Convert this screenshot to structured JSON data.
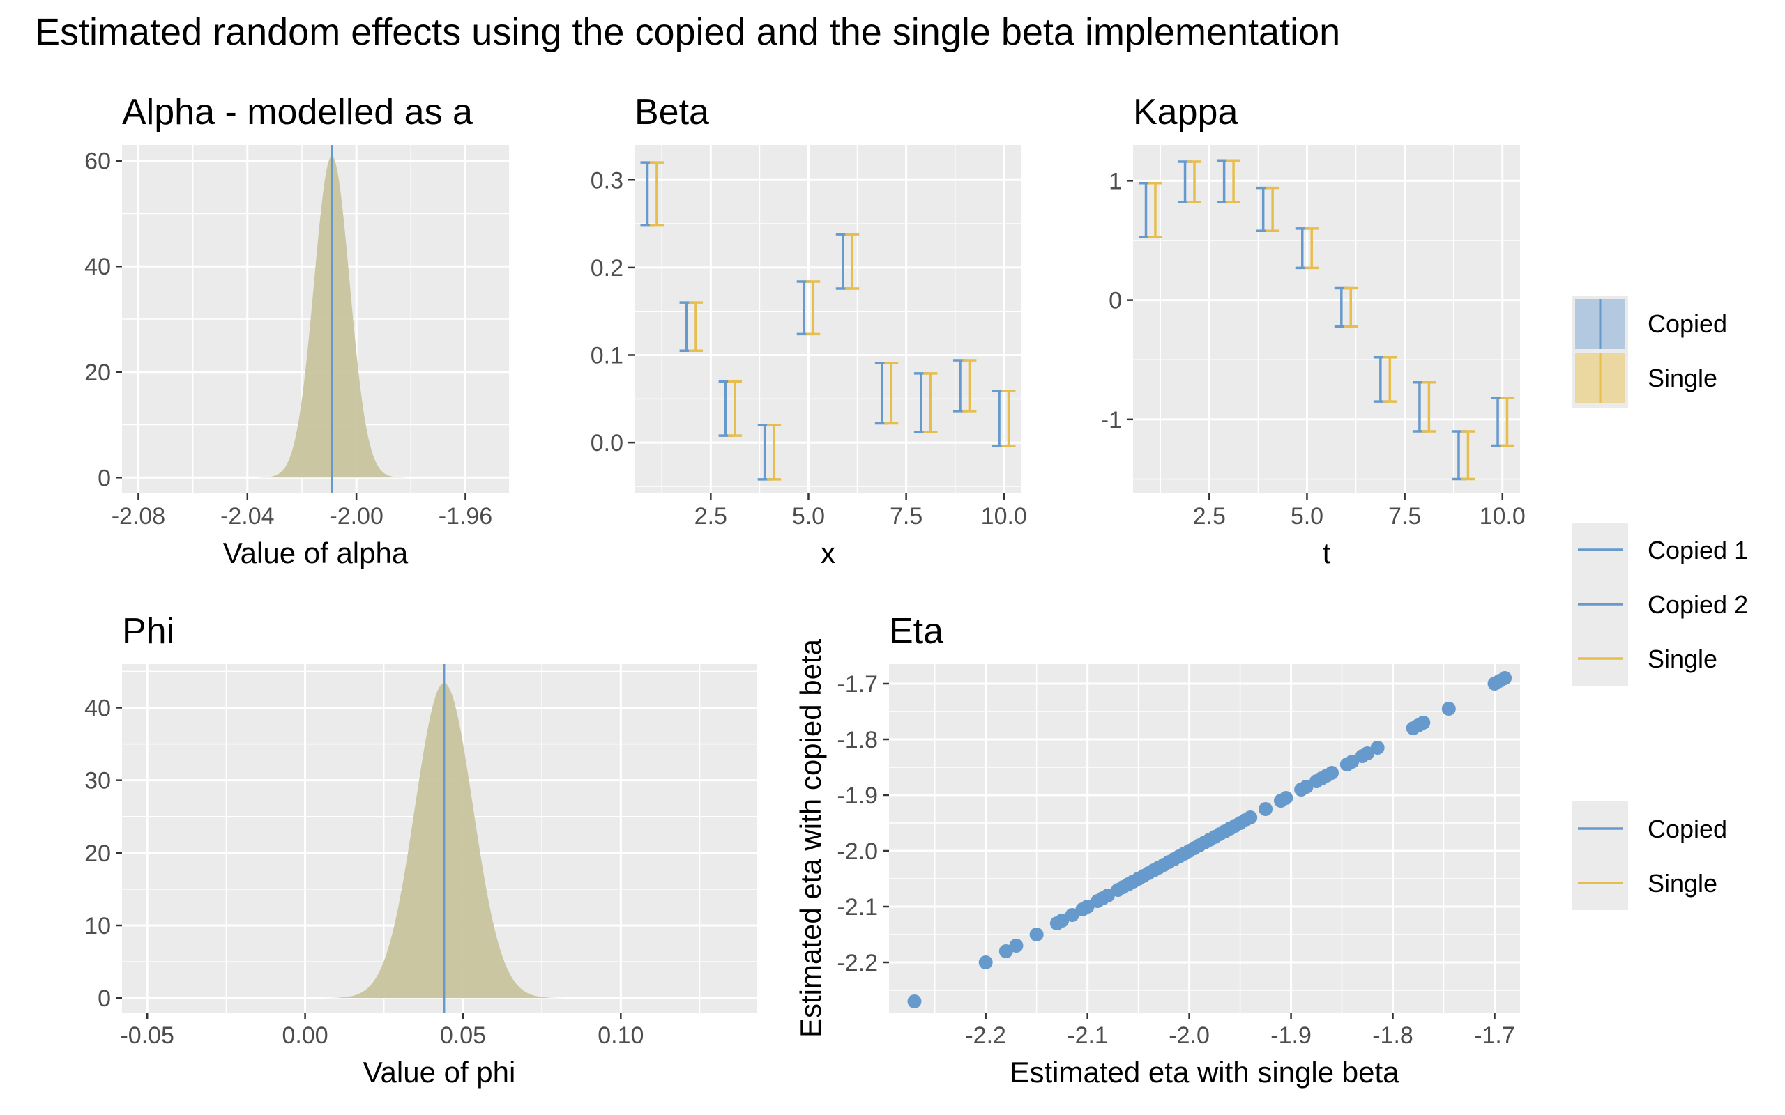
{
  "title": "Estimated random effects using the copied and the single beta implementation",
  "colors": {
    "copied": "#6699CC",
    "single": "#E6BE4D",
    "overlap": "#C9C49E",
    "panel": "#EBEBEB",
    "grid": "#FFFFFF"
  },
  "chart_data": [
    {
      "type": "area",
      "title": "Alpha - modelled as a",
      "xlabel": "Value of alpha",
      "ylabel": "",
      "xlim": [
        -2.086,
        -1.944
      ],
      "ylim": [
        -3,
        63
      ],
      "xticks": [
        -2.08,
        -2.04,
        -2.0,
        -1.96
      ],
      "xtick_labels": [
        "-2.08",
        "-2.04",
        "-2.00",
        "-1.96"
      ],
      "yticks": [
        0,
        20,
        40,
        60
      ],
      "ytick_labels": [
        "0",
        "20",
        "40",
        "60"
      ],
      "grid": true,
      "density": {
        "mean": -2.009,
        "sd": 0.00655,
        "peak": 60.9
      },
      "series": [
        {
          "name": "Copied",
          "estimate": -2.009
        },
        {
          "name": "Single",
          "estimate": -2.009
        }
      ]
    },
    {
      "type": "errorbar",
      "title": "Beta",
      "xlabel": "x",
      "ylabel": "",
      "xlim": [
        0.55,
        10.45
      ],
      "ylim": [
        -0.058,
        0.34
      ],
      "xticks": [
        2.5,
        5.0,
        7.5,
        10.0
      ],
      "xtick_labels": [
        "2.5",
        "5.0",
        "7.5",
        "10.0"
      ],
      "yticks": [
        0.0,
        0.1,
        0.2,
        0.3
      ],
      "ytick_labels": [
        "0.0",
        "0.1",
        "0.2",
        "0.3"
      ],
      "grid": true,
      "x": [
        1,
        2,
        3,
        4,
        5,
        6,
        7,
        8,
        9,
        10
      ],
      "series": [
        {
          "name": "Copied",
          "offset": -0.12,
          "lower": [
            0.248,
            0.105,
            0.008,
            -0.042,
            0.124,
            0.176,
            0.022,
            0.012,
            0.036,
            -0.004
          ],
          "upper": [
            0.32,
            0.16,
            0.07,
            0.02,
            0.184,
            0.238,
            0.091,
            0.079,
            0.094,
            0.059
          ]
        },
        {
          "name": "Single",
          "offset": 0.12,
          "lower": [
            0.248,
            0.105,
            0.008,
            -0.042,
            0.124,
            0.176,
            0.022,
            0.012,
            0.036,
            -0.004
          ],
          "upper": [
            0.32,
            0.16,
            0.07,
            0.02,
            0.184,
            0.238,
            0.091,
            0.079,
            0.094,
            0.059
          ]
        }
      ]
    },
    {
      "type": "errorbar",
      "title": "Kappa",
      "xlabel": "t",
      "ylabel": "",
      "xlim": [
        0.55,
        10.45
      ],
      "ylim": [
        -1.62,
        1.3
      ],
      "xticks": [
        2.5,
        5.0,
        7.5,
        10.0
      ],
      "xtick_labels": [
        "2.5",
        "5.0",
        "7.5",
        "10.0"
      ],
      "yticks": [
        -1,
        0,
        1
      ],
      "ytick_labels": [
        "-1",
        "0",
        "1"
      ],
      "grid": true,
      "x": [
        1,
        2,
        3,
        4,
        5,
        6,
        7,
        8,
        9,
        10
      ],
      "series": [
        {
          "name": "Copied",
          "offset": -0.12,
          "lower": [
            0.53,
            0.82,
            0.82,
            0.58,
            0.27,
            -0.22,
            -0.85,
            -1.1,
            -1.5,
            -1.22
          ],
          "upper": [
            0.98,
            1.16,
            1.17,
            0.94,
            0.6,
            0.1,
            -0.48,
            -0.69,
            -1.1,
            -0.82
          ]
        },
        {
          "name": "Single",
          "offset": 0.12,
          "lower": [
            0.53,
            0.82,
            0.82,
            0.58,
            0.27,
            -0.22,
            -0.85,
            -1.1,
            -1.5,
            -1.22
          ],
          "upper": [
            0.98,
            1.16,
            1.17,
            0.94,
            0.6,
            0.1,
            -0.48,
            -0.69,
            -1.1,
            -0.82
          ]
        }
      ]
    },
    {
      "type": "area",
      "title": "Phi",
      "xlabel": "Value of phi",
      "ylabel": "",
      "xlim": [
        -0.058,
        0.143
      ],
      "ylim": [
        -2,
        46
      ],
      "xticks": [
        -0.05,
        0.0,
        0.05,
        0.1
      ],
      "xtick_labels": [
        "-0.05",
        "0.00",
        "0.05",
        "0.10"
      ],
      "yticks": [
        0,
        10,
        20,
        30,
        40
      ],
      "ytick_labels": [
        "0",
        "10",
        "20",
        "30",
        "40"
      ],
      "grid": true,
      "density": {
        "mean": 0.044,
        "sd": 0.0092,
        "peak": 43.4
      },
      "series": [
        {
          "name": "Copied",
          "estimate": 0.044
        },
        {
          "name": "Single",
          "estimate": 0.044
        }
      ]
    },
    {
      "type": "scatter",
      "title": "Eta",
      "xlabel": "Estimated eta with single beta",
      "ylabel": "Estimated eta with copied beta",
      "xlim": [
        -2.295,
        -1.675
      ],
      "ylim": [
        -2.29,
        -1.665
      ],
      "xticks": [
        -2.2,
        -2.1,
        -2.0,
        -1.9,
        -1.8,
        -1.7
      ],
      "xtick_labels": [
        "-2.2",
        "-2.1",
        "-2.0",
        "-1.9",
        "-1.8",
        "-1.7"
      ],
      "yticks": [
        -2.2,
        -2.1,
        -2.0,
        -1.9,
        -1.8,
        -1.7
      ],
      "ytick_labels": [
        "-2.2",
        "-2.1",
        "-2.0",
        "-1.9",
        "-1.8",
        "-1.7"
      ],
      "grid": true,
      "x": [
        -2.27,
        -2.2,
        -2.18,
        -2.17,
        -2.15,
        -2.13,
        -2.125,
        -2.115,
        -2.105,
        -2.1,
        -2.09,
        -2.085,
        -2.08,
        -2.07,
        -2.065,
        -2.06,
        -2.055,
        -2.05,
        -2.045,
        -2.04,
        -2.035,
        -2.03,
        -2.025,
        -2.02,
        -2.015,
        -2.01,
        -2.005,
        -2.0,
        -1.995,
        -1.99,
        -1.985,
        -1.98,
        -1.975,
        -1.97,
        -1.965,
        -1.96,
        -1.955,
        -1.95,
        -1.945,
        -1.94,
        -1.925,
        -1.91,
        -1.905,
        -1.89,
        -1.885,
        -1.875,
        -1.87,
        -1.865,
        -1.86,
        -1.845,
        -1.84,
        -1.83,
        -1.825,
        -1.815,
        -1.78,
        -1.775,
        -1.77,
        -1.745,
        -1.7,
        -1.695,
        -1.69
      ],
      "y": [
        -2.27,
        -2.2,
        -2.18,
        -2.17,
        -2.15,
        -2.13,
        -2.125,
        -2.115,
        -2.105,
        -2.1,
        -2.09,
        -2.085,
        -2.08,
        -2.07,
        -2.065,
        -2.06,
        -2.055,
        -2.05,
        -2.045,
        -2.04,
        -2.035,
        -2.03,
        -2.025,
        -2.02,
        -2.015,
        -2.01,
        -2.005,
        -2.0,
        -1.995,
        -1.99,
        -1.985,
        -1.98,
        -1.975,
        -1.97,
        -1.965,
        -1.96,
        -1.955,
        -1.95,
        -1.945,
        -1.94,
        -1.925,
        -1.91,
        -1.905,
        -1.89,
        -1.885,
        -1.875,
        -1.87,
        -1.865,
        -1.86,
        -1.845,
        -1.84,
        -1.83,
        -1.825,
        -1.815,
        -1.78,
        -1.775,
        -1.77,
        -1.745,
        -1.7,
        -1.695,
        -1.69
      ]
    }
  ],
  "legends": [
    {
      "items": [
        "Copied",
        "Single"
      ]
    },
    {
      "items": [
        "Copied 1",
        "Copied 2",
        "Single"
      ]
    },
    {
      "items": [
        "Copied",
        "Single"
      ]
    }
  ]
}
